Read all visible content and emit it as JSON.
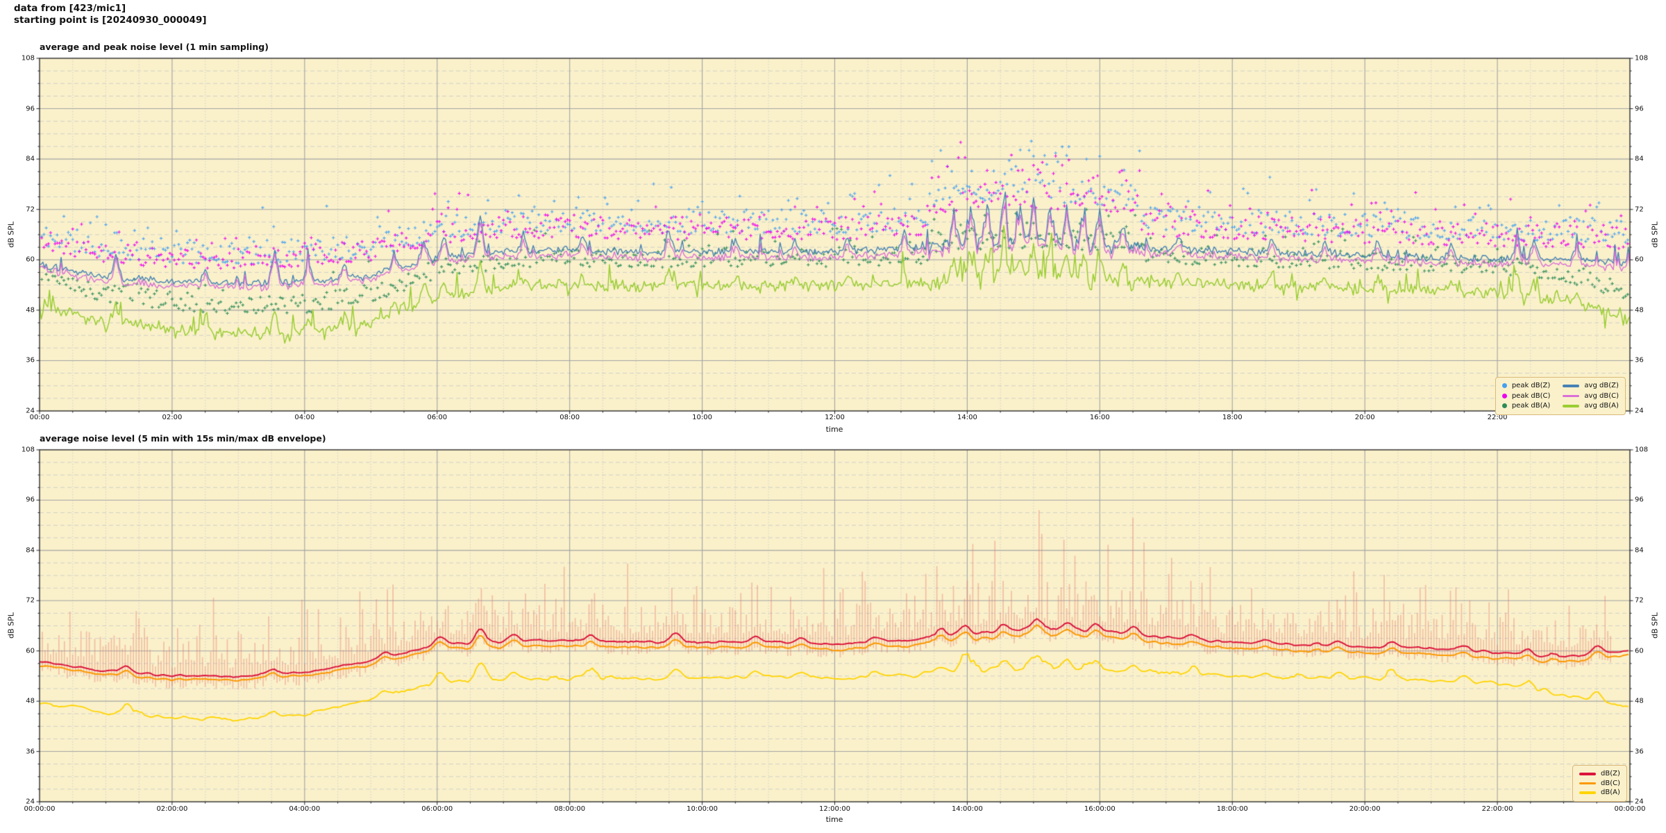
{
  "header": {
    "line1": "data from [423/mic1]",
    "line2": "starting point is [20240930_000049]"
  },
  "colors": {
    "figure_bg": "#ffffff",
    "plot_bg": "#FAF1CB",
    "grid_major": "#a3a3a3",
    "grid_minor": "#c6c6c6",
    "spine": "#2b2b2b",
    "tick_mark": "#222222",
    "legend_border": "#d9b878",
    "envelope": "rgba(232,120,104,0.42)"
  },
  "chart_data": [
    {
      "type": "line+scatter",
      "title": "average and peak noise level (1 min sampling)",
      "xlabel": "time",
      "ylabel": "dB SPL",
      "ylim": [
        24,
        108
      ],
      "xlim_hours": [
        0,
        24
      ],
      "yticks": [
        108,
        96,
        84,
        72,
        60,
        48,
        36,
        24
      ],
      "y_minor_step": 3,
      "y_major_step": 12,
      "x_minor_hours": 0.5,
      "x_major_hours": 2,
      "xtick_hours": [
        0,
        2,
        4,
        6,
        8,
        10,
        12,
        14,
        16,
        18,
        20,
        22
      ],
      "xtick_labels": [
        "00:00",
        "02:00",
        "04:00",
        "06:00",
        "08:00",
        "10:00",
        "12:00",
        "14:00",
        "16:00",
        "18:00",
        "20:00",
        "22:00"
      ],
      "grid": true,
      "legend_position": "lower right",
      "busy_window_hours": [
        13.4,
        16.6
      ],
      "spike_width_hours": 0.09,
      "spikes": [
        {
          "t": 1.15,
          "a": 5
        },
        {
          "t": 2.5,
          "a": 3
        },
        {
          "t": 3.55,
          "a": 7.5
        },
        {
          "t": 4.05,
          "a": 5
        },
        {
          "t": 4.6,
          "a": 3
        },
        {
          "t": 5.35,
          "a": 4
        },
        {
          "t": 5.8,
          "a": 5
        },
        {
          "t": 6.1,
          "a": 5
        },
        {
          "t": 6.65,
          "a": 9
        },
        {
          "t": 7.3,
          "a": 4
        },
        {
          "t": 8.2,
          "a": 3
        },
        {
          "t": 9.5,
          "a": 4.5
        },
        {
          "t": 10.5,
          "a": 3
        },
        {
          "t": 11.4,
          "a": 3
        },
        {
          "t": 12.2,
          "a": 3
        },
        {
          "t": 13.05,
          "a": 4
        },
        {
          "t": 13.8,
          "a": 7
        },
        {
          "t": 14.05,
          "a": 9
        },
        {
          "t": 14.3,
          "a": 8
        },
        {
          "t": 14.55,
          "a": 10
        },
        {
          "t": 14.8,
          "a": 8
        },
        {
          "t": 15.0,
          "a": 11
        },
        {
          "t": 15.25,
          "a": 9
        },
        {
          "t": 15.5,
          "a": 8
        },
        {
          "t": 15.75,
          "a": 6
        },
        {
          "t": 16.0,
          "a": 9
        },
        {
          "t": 16.35,
          "a": 6
        },
        {
          "t": 17.2,
          "a": 3
        },
        {
          "t": 18.6,
          "a": 3
        },
        {
          "t": 19.4,
          "a": 2.5
        },
        {
          "t": 20.2,
          "a": 4
        },
        {
          "t": 21.3,
          "a": 3.5
        },
        {
          "t": 22.3,
          "a": 5
        },
        {
          "t": 22.55,
          "a": 4.5
        },
        {
          "t": 23.2,
          "a": 3
        }
      ],
      "series": [
        {
          "name": "avg dB(Z)",
          "color": "#4682b4",
          "lw": 1.4,
          "step_h": 0.025,
          "seed": 101,
          "jitter": 1.1,
          "busy_jitter": 2.2,
          "up_prob": 0.05,
          "up_amp": 3.5,
          "spike_scale": 1.0,
          "anchors_hourly": [
            59.0,
            56.0,
            54.8,
            54.5,
            55.0,
            56.2,
            60.5,
            62.0,
            62.3,
            62.0,
            61.8,
            62.0,
            61.8,
            62.5,
            63.8,
            64.3,
            63.5,
            62.5,
            62.0,
            61.5,
            61.0,
            60.5,
            60.2,
            60.0,
            59.5
          ]
        },
        {
          "name": "avg dB(C)",
          "color": "#da70d6",
          "lw": 1.4,
          "step_h": 0.025,
          "seed": 102,
          "jitter": 0.5,
          "corr_with": 0,
          "corr": 0.85,
          "spike_scale": 0.95,
          "anchors_hourly": [
            58.2,
            54.9,
            53.8,
            53.6,
            54.2,
            55.4,
            59.6,
            60.8,
            61.0,
            60.6,
            60.4,
            60.6,
            60.4,
            61.2,
            62.6,
            63.1,
            62.2,
            61.2,
            60.7,
            60.2,
            59.7,
            59.3,
            59.0,
            58.8,
            58.3
          ]
        },
        {
          "name": "avg dB(A)",
          "color": "#9acd32",
          "lw": 1.5,
          "step_h": 0.025,
          "seed": 103,
          "jitter": 1.7,
          "busy_jitter": 1.6,
          "up_prob": 0.07,
          "up_amp": 5,
          "down_prob": 0.05,
          "down_amp": 3,
          "spike_scale": 0.75,
          "anchors_hourly": [
            49.0,
            45.5,
            43.5,
            42.6,
            42.8,
            45.2,
            51.0,
            53.5,
            54.0,
            53.6,
            53.8,
            54.0,
            53.8,
            54.3,
            55.3,
            55.8,
            55.3,
            54.6,
            54.0,
            53.6,
            53.2,
            52.8,
            52.2,
            50.5,
            45.5
          ]
        }
      ],
      "scatter": [
        {
          "name": "peak dB(Z)",
          "color": "#45a0f0",
          "ref_series": 0,
          "seed": 11,
          "step_min": 2,
          "base_offset": 4.5,
          "spread": 5.5,
          "tail_prob": 0.15,
          "tail_amp": 9,
          "busy_add": 5,
          "busy_tail": 10,
          "max": 89
        },
        {
          "name": "peak dB(C)",
          "color": "#ee00ee",
          "ref_series": 1,
          "seed": 22,
          "step_min": 2,
          "base_offset": 4.3,
          "spread": 5.5,
          "tail_prob": 0.15,
          "tail_amp": 8,
          "busy_add": 5,
          "busy_tail": 10,
          "max": 88
        },
        {
          "name": "peak dB(A)",
          "color": "#2e8b57",
          "ref_series": 2,
          "seed": 33,
          "step_min": 2,
          "base_offset": 4.5,
          "spread": 4.5,
          "tail_prob": 0.12,
          "tail_amp": 6,
          "busy_add": 2.5,
          "busy_tail": 4,
          "max": 80
        }
      ]
    },
    {
      "type": "line+envelope",
      "title": "average noise level (5 min with 15s min/max dB envelope)",
      "xlabel": "time",
      "ylabel": "dB SPL",
      "ylim": [
        24,
        108
      ],
      "xlim_hours": [
        0,
        24
      ],
      "yticks": [
        108,
        96,
        84,
        72,
        60,
        48,
        36,
        24
      ],
      "y_minor_step": 3,
      "y_major_step": 12,
      "x_minor_hours": 0.5,
      "x_major_hours": 2,
      "xtick_hours": [
        0,
        2,
        4,
        6,
        8,
        10,
        12,
        14,
        16,
        18,
        20,
        22,
        24
      ],
      "xtick_labels": [
        "00:00:00",
        "02:00:00",
        "04:00:00",
        "06:00:00",
        "08:00:00",
        "10:00:00",
        "12:00:00",
        "14:00:00",
        "16:00:00",
        "18:00:00",
        "20:00:00",
        "22:00:00",
        "00:00:00"
      ],
      "grid": true,
      "legend_position": "lower right",
      "busy_window_hours": [
        13.0,
        17.2
      ],
      "spike_width_hours": 0.14,
      "spikes": [
        {
          "t": 1.3,
          "a": 2
        },
        {
          "t": 3.5,
          "a": 1.5
        },
        {
          "t": 5.2,
          "a": 1.5
        },
        {
          "t": 6.05,
          "a": 2.5
        },
        {
          "t": 6.65,
          "a": 4
        },
        {
          "t": 7.15,
          "a": 2
        },
        {
          "t": 8.3,
          "a": 1.5
        },
        {
          "t": 9.6,
          "a": 2.5
        },
        {
          "t": 10.8,
          "a": 1.5
        },
        {
          "t": 11.5,
          "a": 1.5
        },
        {
          "t": 12.6,
          "a": 1.5
        },
        {
          "t": 13.6,
          "a": 2
        },
        {
          "t": 13.95,
          "a": 2.5
        },
        {
          "t": 14.55,
          "a": 2
        },
        {
          "t": 15.05,
          "a": 3
        },
        {
          "t": 15.5,
          "a": 2
        },
        {
          "t": 15.95,
          "a": 2.5
        },
        {
          "t": 16.5,
          "a": 2
        },
        {
          "t": 17.4,
          "a": 1.5
        },
        {
          "t": 18.5,
          "a": 1
        },
        {
          "t": 19.6,
          "a": 1.5
        },
        {
          "t": 20.4,
          "a": 1.5
        },
        {
          "t": 21.5,
          "a": 1.5
        },
        {
          "t": 22.45,
          "a": 1.5
        },
        {
          "t": 23.5,
          "a": 2.5
        }
      ],
      "envelope": {
        "ref_series": 0,
        "seed": 55,
        "step_min": 2.5,
        "base_offset": 2.0,
        "hump": 7,
        "tall_prob": 0.3,
        "tall_amp": 13,
        "busy_mult": 1.6,
        "min_base": 1.0,
        "min_rand": 2.2
      },
      "series": [
        {
          "name": "dB(Z)",
          "color": "#dc143c",
          "lw": 2.0,
          "step_h": 0.0417,
          "seed": 201,
          "jitter": 0.55,
          "busy_jitter": 1.6,
          "up_prob": 0.03,
          "up_amp": 1.5,
          "spike_scale": 1.0,
          "smooth": 3,
          "anchors_hourly": [
            57.5,
            55.2,
            54.0,
            54.0,
            55.0,
            57.5,
            61.5,
            62.3,
            62.5,
            62.3,
            62.0,
            62.3,
            61.6,
            62.5,
            64.3,
            65.3,
            64.8,
            63.2,
            62.0,
            61.5,
            61.0,
            60.6,
            59.6,
            58.6,
            60.0
          ]
        },
        {
          "name": "dB(C)",
          "color": "#fb9902",
          "lw": 2.0,
          "step_h": 0.0417,
          "seed": 202,
          "jitter": 0.3,
          "corr_with": 0,
          "corr": 0.9,
          "spike_scale": 0.9,
          "smooth": 3,
          "anchors_hourly": [
            56.6,
            54.3,
            53.1,
            53.2,
            54.2,
            56.6,
            60.4,
            61.0,
            61.2,
            61.0,
            60.7,
            61.0,
            60.3,
            61.2,
            62.9,
            63.9,
            63.4,
            61.8,
            60.6,
            60.1,
            59.6,
            59.2,
            58.2,
            57.4,
            58.9
          ]
        },
        {
          "name": "dB(A)",
          "color": "#ffd400",
          "lw": 1.8,
          "step_h": 0.0417,
          "seed": 203,
          "jitter": 0.8,
          "busy_jitter": 1.4,
          "up_prob": 0.05,
          "up_amp": 2.5,
          "spike_scale": 1.2,
          "smooth": 3,
          "anchors_hourly": [
            47.5,
            45.2,
            44.2,
            43.6,
            44.6,
            48.5,
            52.3,
            53.0,
            53.4,
            53.4,
            53.5,
            53.8,
            53.4,
            54.0,
            55.4,
            55.9,
            55.4,
            54.6,
            54.0,
            53.6,
            53.4,
            53.0,
            52.4,
            49.5,
            46.5
          ]
        }
      ]
    }
  ]
}
